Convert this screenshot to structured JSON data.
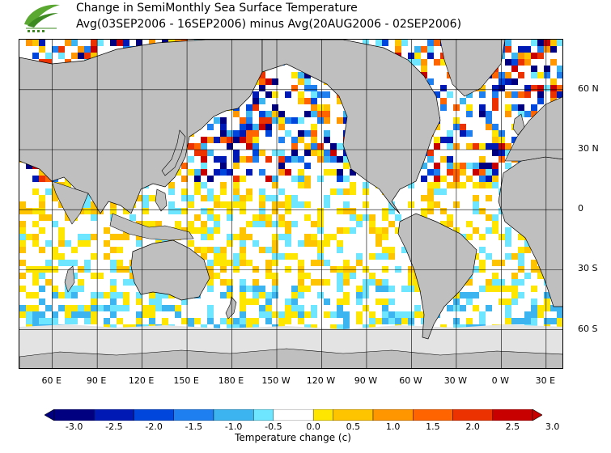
{
  "header": {
    "title_line1": "Change in SemiMonthly Sea Surface Temperature",
    "title_line2": "Avg(03SEP2006 - 16SEP2006) minus Avg(20AUG2006 - 02SEP2006)"
  },
  "map": {
    "lat_labels": [
      "60 N",
      "30 N",
      "0",
      "30 S",
      "60 S"
    ],
    "lat_values": [
      60,
      30,
      0,
      -30,
      -60
    ],
    "lon_labels": [
      "60 E",
      "90 E",
      "120 E",
      "150 E",
      "180 E",
      "150 W",
      "120 W",
      "90 W",
      "60 W",
      "30 W",
      "0 W",
      "30 E"
    ],
    "lon_values": [
      60,
      90,
      120,
      150,
      180,
      210,
      240,
      270,
      300,
      330,
      360,
      390
    ],
    "lon_range": [
      38,
      402
    ],
    "lat_range": [
      -80,
      85
    ],
    "colors": {
      "land": "#bfbfbf",
      "ice": "#e3e3e3",
      "coast": "#000000",
      "grid": "#000000"
    }
  },
  "colorbar": {
    "ticks": [
      "-3.0",
      "-2.5",
      "-2.0",
      "-1.5",
      "-1.0",
      "-0.5",
      "0.0",
      "0.5",
      "1.0",
      "1.5",
      "2.0",
      "2.5",
      "3.0"
    ],
    "colors": [
      "#000080",
      "#0018b4",
      "#0046dc",
      "#1e7ff0",
      "#3cb4f0",
      "#6ee6ff",
      "#ffffff",
      "#ffe600",
      "#ffc400",
      "#ff9600",
      "#ff6400",
      "#eb3200",
      "#c80000"
    ],
    "caption": "Temperature change (c)"
  }
}
